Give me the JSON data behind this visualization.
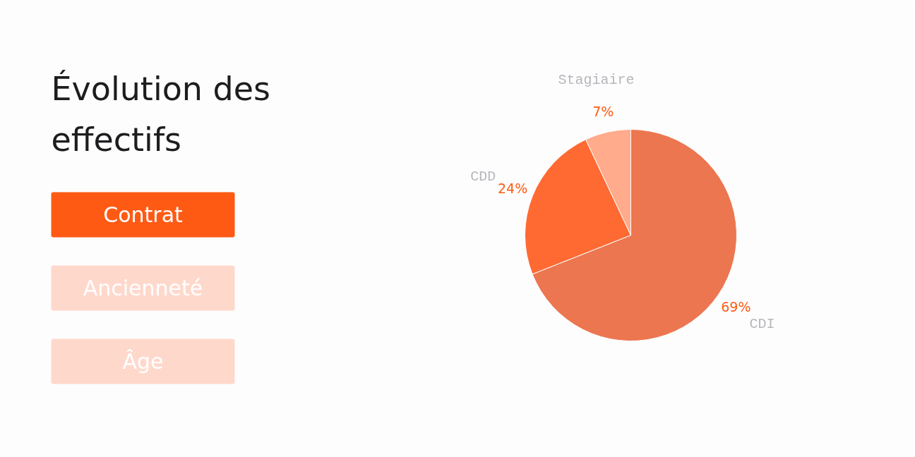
{
  "chart_data": {
    "type": "pie",
    "title": "Évolution des effectifs",
    "categories": [
      "CDI",
      "CDD",
      "Stagiaire"
    ],
    "values": [
      69,
      24,
      7
    ],
    "value_labels": [
      "69%",
      "24%",
      "7%"
    ],
    "colors": [
      "#ec7650",
      "#ff6a33",
      "#ffab8c"
    ],
    "annotations": [
      "Contrat",
      "Ancienneté",
      "Âge"
    ]
  }
}
